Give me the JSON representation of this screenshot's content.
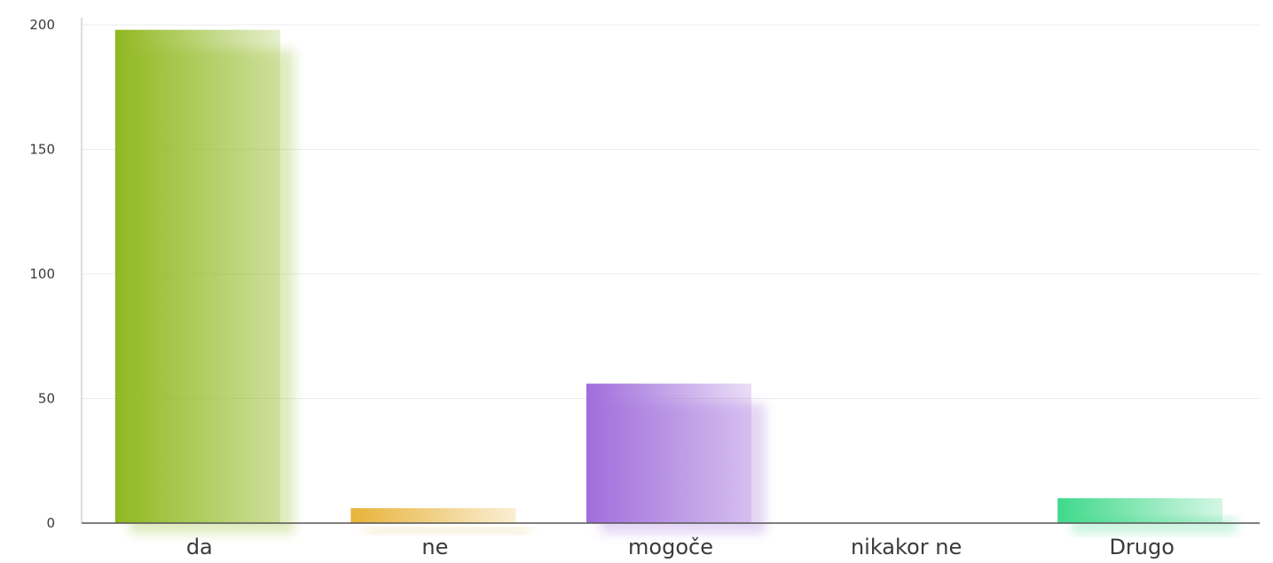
{
  "chart_data": {
    "type": "bar",
    "title": "",
    "xlabel": "",
    "ylabel": "",
    "categories": [
      "da",
      "ne",
      "mogoče",
      "nikakor ne",
      "Drugo"
    ],
    "values": [
      198,
      6,
      56,
      0,
      10
    ],
    "ylim": [
      0,
      200
    ],
    "yticks": [
      0,
      50,
      100,
      150,
      200
    ],
    "grid": true,
    "legend": "none",
    "bar_colors": [
      "#8fb81f",
      "#e8b33a",
      "#a06ddb",
      "#cccccc",
      "#3fd98a"
    ]
  }
}
